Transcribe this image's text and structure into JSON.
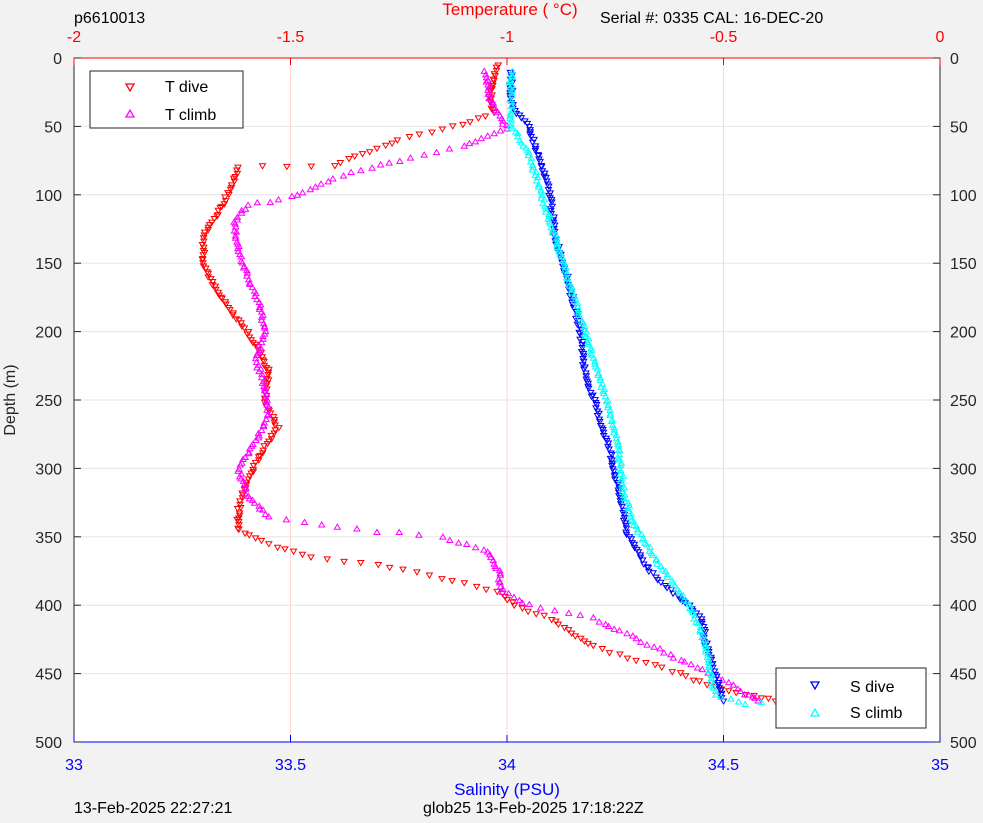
{
  "header": {
    "id": "p6610013",
    "serial": "Serial #: 0335  CAL: 16-DEC-20"
  },
  "footer": {
    "left": "13-Feb-2025 22:27:21",
    "center": "glob25 13-Feb-2025 17:18:22Z"
  },
  "colors": {
    "t_dive": "#ff0000",
    "t_climb": "#ff00ff",
    "s_dive": "#0000ff",
    "s_climb": "#00ffff",
    "grid": "#e6e6e6",
    "tgrid": "#ffd6d6"
  },
  "chart_data": {
    "type": "scatter",
    "grid": true,
    "yaxis": {
      "label": "Depth (m)",
      "range": [
        0,
        500
      ],
      "reversed": true,
      "ticks": [
        "0",
        "50",
        "100",
        "150",
        "200",
        "250",
        "300",
        "350",
        "400",
        "450",
        "500"
      ]
    },
    "x_top": {
      "label": "Temperature (    °C)",
      "range": [
        -2,
        0
      ],
      "ticks": [
        "-2",
        "-1.5",
        "-1",
        "-0.5",
        "0"
      ]
    },
    "x_bottom": {
      "label": "Salinity (PSU)",
      "range": [
        33,
        35
      ],
      "ticks": [
        "33",
        "33.5",
        "34",
        "34.5",
        "35"
      ]
    },
    "legend_temp": {
      "placement": "top-left",
      "entries": [
        "T dive",
        "T climb"
      ]
    },
    "legend_sal": {
      "placement": "bottom-right",
      "entries": [
        "S dive",
        "S climb"
      ]
    },
    "series": [
      {
        "name": "T dive",
        "axis": "temperature",
        "marker": "triangle-down",
        "color": "#ff0000",
        "profile": [
          [
            -1.02,
            5
          ],
          [
            -1.03,
            15
          ],
          [
            -1.04,
            30
          ],
          [
            -1.03,
            40
          ],
          [
            -1.1,
            48
          ],
          [
            -1.25,
            60
          ],
          [
            -1.4,
            78
          ],
          [
            -1.62,
            80
          ],
          [
            -1.63,
            90
          ],
          [
            -1.66,
            110
          ],
          [
            -1.7,
            130
          ],
          [
            -1.7,
            150
          ],
          [
            -1.68,
            165
          ],
          [
            -1.65,
            180
          ],
          [
            -1.6,
            200
          ],
          [
            -1.57,
            215
          ],
          [
            -1.55,
            230
          ],
          [
            -1.56,
            250
          ],
          [
            -1.53,
            270
          ],
          [
            -1.57,
            290
          ],
          [
            -1.6,
            310
          ],
          [
            -1.62,
            330
          ],
          [
            -1.62,
            345
          ],
          [
            -1.55,
            355
          ],
          [
            -1.45,
            365
          ],
          [
            -1.3,
            370
          ],
          [
            -1.15,
            380
          ],
          [
            -1.02,
            390
          ],
          [
            -0.98,
            400
          ],
          [
            -0.9,
            410
          ],
          [
            -0.85,
            420
          ],
          [
            -0.8,
            430
          ],
          [
            -0.7,
            440
          ],
          [
            -0.6,
            450
          ],
          [
            -0.52,
            460
          ],
          [
            -0.45,
            465
          ],
          [
            -0.38,
            470
          ]
        ]
      },
      {
        "name": "T climb",
        "axis": "temperature",
        "marker": "triangle-up",
        "color": "#ff00ff",
        "profile": [
          [
            -1.05,
            10
          ],
          [
            -1.04,
            30
          ],
          [
            -1.0,
            52
          ],
          [
            -1.1,
            65
          ],
          [
            -1.25,
            75
          ],
          [
            -1.4,
            88
          ],
          [
            -1.5,
            102
          ],
          [
            -1.6,
            108
          ],
          [
            -1.63,
            120
          ],
          [
            -1.62,
            140
          ],
          [
            -1.6,
            160
          ],
          [
            -1.57,
            180
          ],
          [
            -1.56,
            200
          ],
          [
            -1.58,
            220
          ],
          [
            -1.56,
            240
          ],
          [
            -1.55,
            260
          ],
          [
            -1.58,
            280
          ],
          [
            -1.62,
            300
          ],
          [
            -1.6,
            320
          ],
          [
            -1.55,
            335
          ],
          [
            -1.35,
            345
          ],
          [
            -1.15,
            350
          ],
          [
            -1.05,
            360
          ],
          [
            -1.02,
            375
          ],
          [
            -1.01,
            390
          ],
          [
            -0.95,
            400
          ],
          [
            -0.8,
            410
          ],
          [
            -0.7,
            425
          ],
          [
            -0.6,
            440
          ],
          [
            -0.5,
            455
          ],
          [
            -0.45,
            465
          ],
          [
            -0.42,
            470
          ]
        ]
      },
      {
        "name": "S dive",
        "axis": "salinity",
        "marker": "triangle-down",
        "color": "#0000ff",
        "profile": [
          [
            34.01,
            10
          ],
          [
            34.01,
            30
          ],
          [
            34.02,
            40
          ],
          [
            34.05,
            50
          ],
          [
            34.07,
            70
          ],
          [
            34.1,
            100
          ],
          [
            34.11,
            130
          ],
          [
            34.13,
            150
          ],
          [
            34.15,
            175
          ],
          [
            34.17,
            200
          ],
          [
            34.18,
            230
          ],
          [
            34.21,
            260
          ],
          [
            34.24,
            290
          ],
          [
            34.26,
            320
          ],
          [
            34.28,
            350
          ],
          [
            34.33,
            375
          ],
          [
            34.4,
            395
          ],
          [
            34.45,
            410
          ],
          [
            34.46,
            430
          ],
          [
            34.48,
            450
          ],
          [
            34.5,
            470
          ]
        ]
      },
      {
        "name": "S climb",
        "axis": "salinity",
        "marker": "triangle-up",
        "color": "#00ffff",
        "profile": [
          [
            34.01,
            10
          ],
          [
            34.01,
            30
          ],
          [
            34.01,
            50
          ],
          [
            34.05,
            70
          ],
          [
            34.08,
            100
          ],
          [
            34.11,
            130
          ],
          [
            34.14,
            160
          ],
          [
            34.18,
            200
          ],
          [
            34.21,
            230
          ],
          [
            34.24,
            260
          ],
          [
            34.26,
            290
          ],
          [
            34.27,
            320
          ],
          [
            34.3,
            345
          ],
          [
            34.35,
            370
          ],
          [
            34.42,
            400
          ],
          [
            34.45,
            420
          ],
          [
            34.47,
            450
          ],
          [
            34.48,
            465
          ],
          [
            34.55,
            472
          ],
          [
            34.7,
            470
          ]
        ]
      }
    ]
  }
}
